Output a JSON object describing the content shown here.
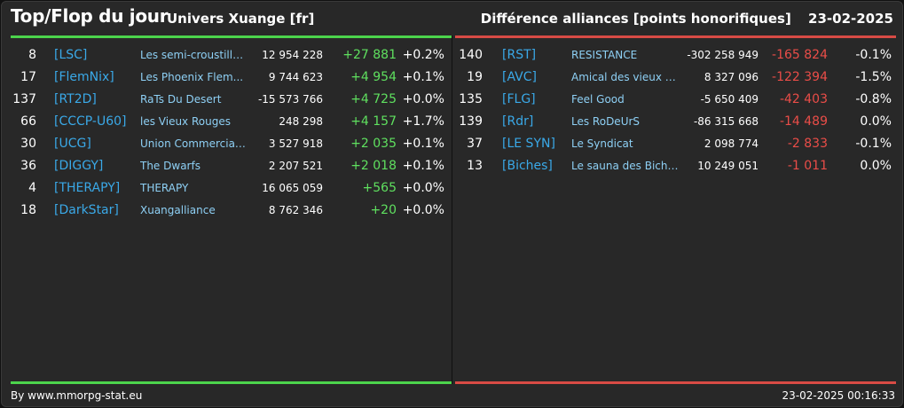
{
  "header": {
    "title": "Top/Flop du jour",
    "universe": "Univers Xuange [fr]",
    "metric": "Différence alliances [points honorifiques]",
    "date": "23-02-2025"
  },
  "colors": {
    "positive": "#5fe05f",
    "negative": "#ea4d48",
    "tag": "#3aa9e8",
    "name": "#8ed0f5",
    "top_bar": "#4cd44c",
    "flop_bar": "#d84b45"
  },
  "top": [
    {
      "rank": "8",
      "tag": "[LSC]",
      "name": "Les semi-croustilla...",
      "points": "12 954 228",
      "diff": "+27 881",
      "pct": "+0.2%"
    },
    {
      "rank": "17",
      "tag": "[FlemNix]",
      "name": "Les Phoenix Flem...",
      "points": "9 744 623",
      "diff": "+4 954",
      "pct": "+0.1%"
    },
    {
      "rank": "137",
      "tag": "[RT2D]",
      "name": "RaTs Du Desert",
      "points": "-15 573 766",
      "diff": "+4 725",
      "pct": "+0.0%"
    },
    {
      "rank": "66",
      "tag": "[CCCP-U60]",
      "name": "les Vieux Rouges",
      "points": "248 298",
      "diff": "+4 157",
      "pct": "+1.7%"
    },
    {
      "rank": "30",
      "tag": "[UCG]",
      "name": "Union Commerciale...",
      "points": "3 527 918",
      "diff": "+2 035",
      "pct": "+0.1%"
    },
    {
      "rank": "36",
      "tag": "[DIGGY]",
      "name": "The Dwarfs",
      "points": "2 207 521",
      "diff": "+2 018",
      "pct": "+0.1%"
    },
    {
      "rank": "4",
      "tag": "[THERAPY]",
      "name": "THERAPY",
      "points": "16 065 059",
      "diff": "+565",
      "pct": "+0.0%"
    },
    {
      "rank": "18",
      "tag": "[DarkStar]",
      "name": "Xuangalliance",
      "points": "8 762 346",
      "diff": "+20",
      "pct": "+0.0%"
    }
  ],
  "flop": [
    {
      "rank": "140",
      "tag": "[RST]",
      "name": "RESISTANCE",
      "points": "-302 258 949",
      "diff": "-165 824",
      "pct": "-0.1%"
    },
    {
      "rank": "19",
      "tag": "[AVC]",
      "name": "Amical des vieux co...",
      "points": "8 327 096",
      "diff": "-122 394",
      "pct": "-1.5%"
    },
    {
      "rank": "135",
      "tag": "[FLG]",
      "name": "Feel Good",
      "points": "-5 650 409",
      "diff": "-42 403",
      "pct": "-0.8%"
    },
    {
      "rank": "139",
      "tag": "[Rdr]",
      "name": "Les RoDeUrS",
      "points": "-86 315 668",
      "diff": "-14 489",
      "pct": "0.0%"
    },
    {
      "rank": "37",
      "tag": "[LE SYN]",
      "name": "Le Syndicat",
      "points": "2 098 774",
      "diff": "-2 833",
      "pct": "-0.1%"
    },
    {
      "rank": "13",
      "tag": "[Biches]",
      "name": "Le sauna des Biche...",
      "points": "10 249 051",
      "diff": "-1 011",
      "pct": "0.0%"
    }
  ],
  "footer": {
    "credit": "By www.mmorpg-stat.eu",
    "timestamp": "23-02-2025 00:16:33"
  }
}
